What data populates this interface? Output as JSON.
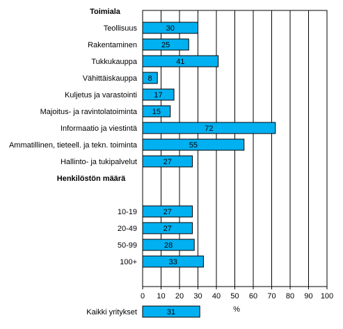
{
  "chart_data": {
    "type": "bar",
    "orientation": "horizontal",
    "xlabel": "%",
    "xlim": [
      0,
      100
    ],
    "xticks": [
      0,
      10,
      20,
      30,
      40,
      50,
      60,
      70,
      80,
      90,
      100
    ],
    "grid": true,
    "bar_color": "#00b0f0",
    "rows": [
      {
        "kind": "header",
        "label": "Toimiala"
      },
      {
        "kind": "bar",
        "label": "Teollisuus",
        "value": 30
      },
      {
        "kind": "bar",
        "label": "Rakentaminen",
        "value": 25
      },
      {
        "kind": "bar",
        "label": "Tukkukauppa",
        "value": 41
      },
      {
        "kind": "bar",
        "label": "Vähittäiskauppa",
        "value": 8
      },
      {
        "kind": "bar",
        "label": "Kuljetus ja varastointi",
        "value": 17
      },
      {
        "kind": "bar",
        "label": "Majoitus- ja ravintolatoiminta",
        "value": 15
      },
      {
        "kind": "bar",
        "label": "Informaatio ja viestintä",
        "value": 72
      },
      {
        "kind": "bar",
        "label": "Ammatillinen, tieteell. ja tekn. toiminta",
        "value": 55
      },
      {
        "kind": "bar",
        "label": "Hallinto- ja tukipalvelut",
        "value": 27
      },
      {
        "kind": "header",
        "label": "Henkilöstön määrä"
      },
      {
        "kind": "blank",
        "label": ""
      },
      {
        "kind": "bar",
        "label": "10-19",
        "value": 27
      },
      {
        "kind": "bar",
        "label": "20-49",
        "value": 27
      },
      {
        "kind": "bar",
        "label": "50-99",
        "value": 28
      },
      {
        "kind": "bar",
        "label": "100+",
        "value": 33
      },
      {
        "kind": "blank",
        "label": ""
      },
      {
        "kind": "blank",
        "label": ""
      },
      {
        "kind": "bar",
        "label": "Kaikki yritykset",
        "value": 31
      }
    ]
  }
}
